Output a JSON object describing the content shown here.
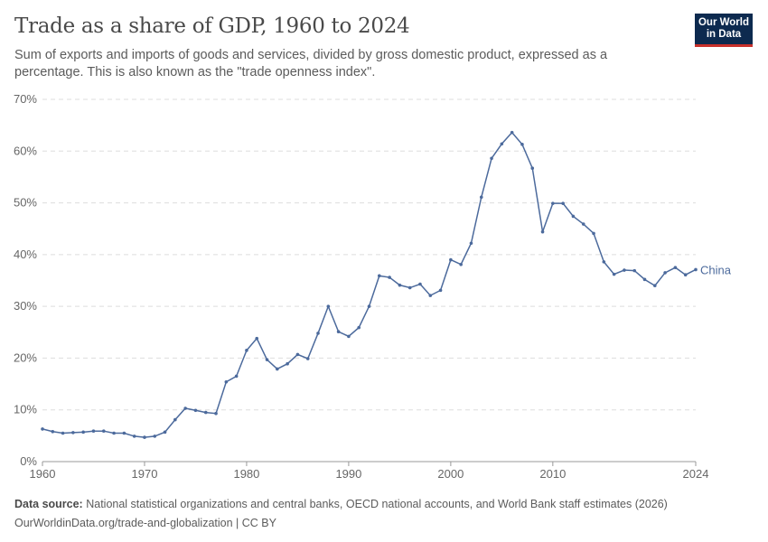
{
  "header": {
    "title": "Trade as a share of GDP, 1960 to 2024",
    "subtitle": "Sum of exports and imports of goods and services, divided by gross domestic product, expressed as a percentage. This is also known as the \"trade openness index\".",
    "logo": "Our World in Data"
  },
  "footer": {
    "source_label": "Data source:",
    "source": "National statistical organizations and central banks, OECD national accounts, and World Bank staff estimates (2026)",
    "link": "OurWorldinData.org/trade-and-globalization | CC BY"
  },
  "chart_data": {
    "type": "line",
    "title": "Trade as a share of GDP, 1960 to 2024",
    "xlim": [
      1960,
      2024
    ],
    "ylim": [
      0,
      70
    ],
    "yticks": [
      0,
      10,
      20,
      30,
      40,
      50,
      60,
      70
    ],
    "ytick_labels": [
      "0%",
      "10%",
      "20%",
      "30%",
      "40%",
      "50%",
      "60%",
      "70%"
    ],
    "xticks": [
      1960,
      1970,
      1980,
      1990,
      2000,
      2010,
      2024
    ],
    "xtick_labels": [
      "1960",
      "1970",
      "1980",
      "1990",
      "2000",
      "2010",
      "2024"
    ],
    "grid": true,
    "color": "#4c6a9c",
    "series": [
      {
        "name": "China",
        "x": [
          1960,
          1961,
          1962,
          1963,
          1964,
          1965,
          1966,
          1967,
          1968,
          1969,
          1970,
          1971,
          1972,
          1973,
          1974,
          1975,
          1976,
          1977,
          1978,
          1979,
          1980,
          1981,
          1982,
          1983,
          1984,
          1985,
          1986,
          1987,
          1988,
          1989,
          1990,
          1991,
          1992,
          1993,
          1994,
          1995,
          1996,
          1997,
          1998,
          1999,
          2000,
          2001,
          2002,
          2003,
          2004,
          2005,
          2006,
          2007,
          2008,
          2009,
          2010,
          2011,
          2012,
          2013,
          2014,
          2015,
          2016,
          2017,
          2018,
          2019,
          2020,
          2021,
          2022,
          2023,
          2024
        ],
        "values": [
          6.3,
          5.8,
          5.5,
          5.6,
          5.7,
          5.9,
          5.9,
          5.5,
          5.5,
          4.9,
          4.7,
          4.9,
          5.7,
          8.1,
          10.3,
          9.9,
          9.5,
          9.3,
          15.4,
          16.5,
          21.5,
          23.8,
          19.7,
          17.9,
          18.9,
          20.7,
          19.9,
          24.8,
          30.0,
          25.1,
          24.2,
          25.9,
          30.0,
          35.9,
          35.6,
          34.1,
          33.6,
          34.3,
          32.1,
          33.1,
          39.0,
          38.1,
          42.2,
          51.1,
          58.6,
          61.4,
          63.6,
          61.3,
          56.7,
          44.4,
          49.9,
          49.9,
          47.4,
          45.9,
          44.1,
          38.6,
          36.2,
          37.0,
          36.9,
          35.2,
          34.0,
          36.5,
          37.5,
          36.1,
          37.1
        ]
      }
    ]
  }
}
